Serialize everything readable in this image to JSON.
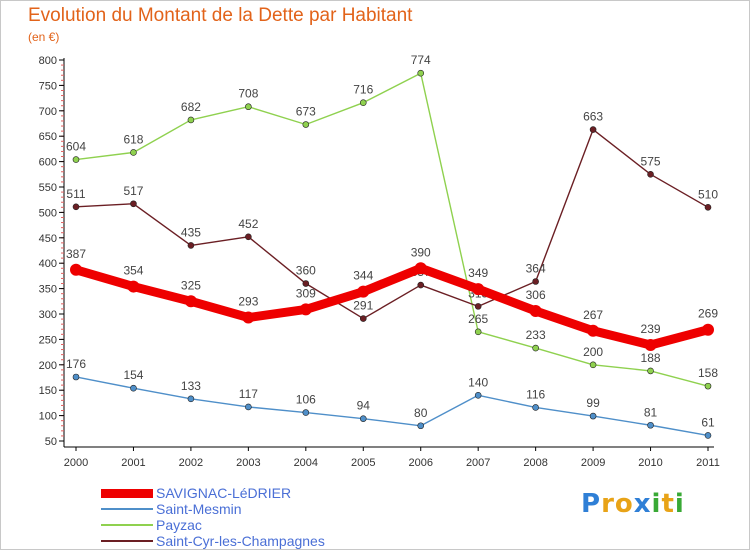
{
  "chart_data": {
    "type": "line",
    "title": "Evolution du Montant de la Dette par Habitant",
    "subtitle": "(en €)",
    "xlabel": "",
    "ylabel": "",
    "x": [
      "2000",
      "2001",
      "2002",
      "2003",
      "2004",
      "2005",
      "2006",
      "2007",
      "2008",
      "2009",
      "2010",
      "2011"
    ],
    "ylim": [
      50,
      800
    ],
    "yticks": [
      50,
      100,
      150,
      200,
      250,
      300,
      350,
      400,
      450,
      500,
      550,
      600,
      650,
      700,
      750,
      800
    ],
    "grid": false,
    "legend_position": "bottom-left",
    "series": [
      {
        "name": "Saint-Mesmin",
        "color": "#4f8fc9",
        "values": [
          176,
          154,
          133,
          117,
          106,
          94,
          80,
          140,
          116,
          99,
          81,
          61
        ]
      },
      {
        "name": "Payzac",
        "color": "#8fd14f",
        "values": [
          604,
          618,
          682,
          708,
          673,
          716,
          774,
          265,
          233,
          200,
          188,
          158
        ]
      },
      {
        "name": "Saint-Cyr-les-Champagnes",
        "color": "#6b1f24",
        "values": [
          511,
          517,
          435,
          452,
          360,
          291,
          357,
          315,
          364,
          663,
          575,
          510
        ]
      },
      {
        "name": "SAVIGNAC-LéDRIER",
        "color": "#ee0000",
        "values": [
          387,
          354,
          325,
          293,
          309,
          344,
          390,
          349,
          306,
          267,
          239,
          269
        ]
      }
    ]
  },
  "legend": {
    "items": [
      {
        "label": "SAVIGNAC-LéDRIER",
        "color": "#ee0000"
      },
      {
        "label": "Saint-Mesmin",
        "color": "#4f8fc9"
      },
      {
        "label": "Payzac",
        "color": "#8fd14f"
      },
      {
        "label": "Saint-Cyr-les-Champagnes",
        "color": "#6b1f24"
      }
    ]
  },
  "logo": {
    "letters": [
      "P",
      "r",
      "o",
      "x",
      "i",
      "t",
      "i"
    ],
    "colors": [
      "#2f7fd6",
      "#e8a317",
      "#e8a317",
      "#2f7fd6",
      "#39a935",
      "#e8a317",
      "#39a935"
    ]
  }
}
